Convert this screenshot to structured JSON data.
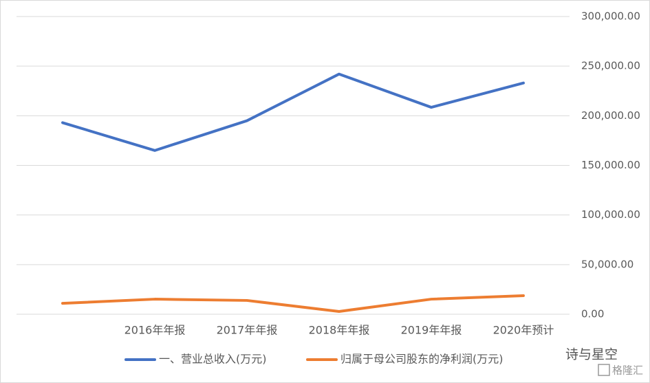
{
  "chart_data": {
    "type": "line",
    "categories": [
      null,
      "2016年年报",
      "2017年年报",
      "2018年年报",
      "2019年年报",
      "2020年预计"
    ],
    "series": [
      {
        "name": "一、营业总收入(万元)",
        "color": "#4472c4",
        "values": [
          193000,
          165000,
          195000,
          242000,
          208500,
          233000
        ]
      },
      {
        "name": "归属于母公司股东的净利润(万元)",
        "color": "#ed7d31",
        "values": [
          11000,
          15200,
          13900,
          2800,
          15200,
          18700
        ]
      }
    ],
    "ylim": [
      0,
      300000
    ],
    "yticks": [
      {
        "value": 0,
        "label": "0.00"
      },
      {
        "value": 50000,
        "label": "50,000.00"
      },
      {
        "value": 100000,
        "label": "100,000.00"
      },
      {
        "value": 150000,
        "label": "150,000.00"
      },
      {
        "value": 200000,
        "label": "200,000.00"
      },
      {
        "value": 250000,
        "label": "250,000.00"
      },
      {
        "value": 300000,
        "label": "300,000.00"
      }
    ],
    "yaxis_side": "right",
    "grid": true,
    "legend": "bottom",
    "watermark": [
      "诗与星空",
      "格隆汇"
    ]
  }
}
